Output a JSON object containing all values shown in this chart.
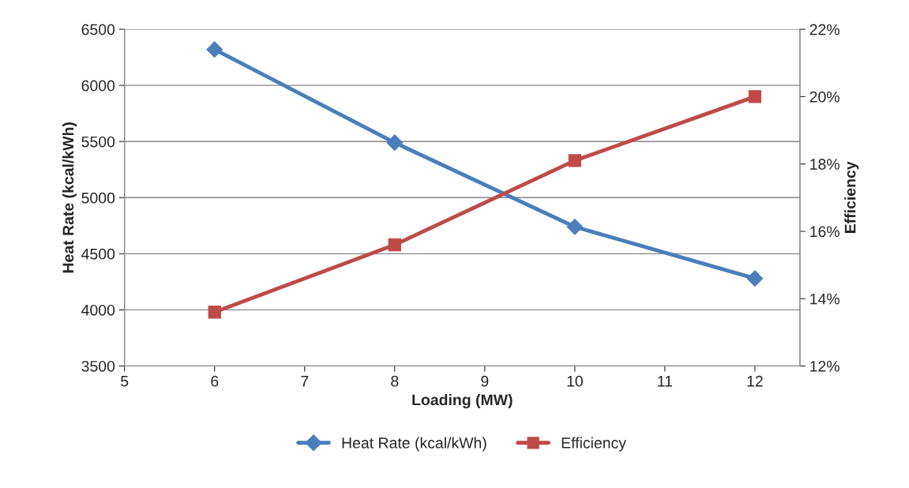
{
  "chart_data": {
    "type": "line",
    "xlabel": "Loading (MW)",
    "ylabel": "Heat Rate (kcal/kWh)",
    "y2label": "Efficiency",
    "x": [
      6,
      8,
      10,
      12
    ],
    "series": [
      {
        "name": "Heat Rate (kcal/kWh)",
        "color": "#4a7ebb",
        "marker": "diamond",
        "values": [
          6320,
          5490,
          4740,
          4280
        ]
      },
      {
        "name": "Efficiency",
        "color": "#be4b48",
        "marker": "square",
        "axis": "y2",
        "values": [
          13.6,
          15.6,
          18.1,
          20.0
        ]
      }
    ],
    "xlim": [
      5,
      12.5
    ],
    "xticks": [
      5,
      6,
      7,
      8,
      9,
      10,
      11,
      12
    ],
    "ylim": [
      3500,
      6500
    ],
    "yticks": [
      3500,
      4000,
      4500,
      5000,
      5500,
      6000,
      6500
    ],
    "y2lim": [
      12,
      22
    ],
    "y2ticks": [
      {
        "value": 12,
        "label": "12%"
      },
      {
        "value": 14,
        "label": "14%"
      },
      {
        "value": 16,
        "label": "16%"
      },
      {
        "value": 18,
        "label": "18%"
      },
      {
        "value": 20,
        "label": "20%"
      },
      {
        "value": 22,
        "label": "22%"
      }
    ],
    "grid": "y",
    "legend": "bottom",
    "line_style": "solid"
  }
}
